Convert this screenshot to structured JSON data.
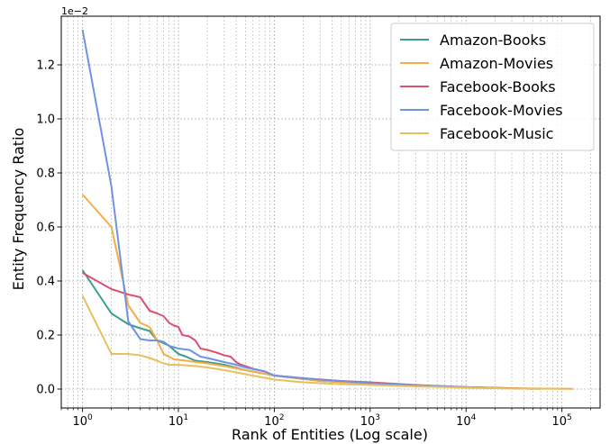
{
  "chart_data": {
    "type": "line",
    "xlabel": "Rank of Entities (Log scale)",
    "ylabel": "Entity Frequency Ratio",
    "y_offset_label": "1e−2",
    "x_scale": "log",
    "xlim": [
      0.6,
      250000
    ],
    "ylim": [
      -0.07,
      1.38
    ],
    "y_ticks": [
      {
        "value": 0.0,
        "label": "0.0"
      },
      {
        "value": 0.2,
        "label": "0.2"
      },
      {
        "value": 0.4,
        "label": "0.4"
      },
      {
        "value": 0.6,
        "label": "0.6"
      },
      {
        "value": 0.8,
        "label": "0.8"
      },
      {
        "value": 1.0,
        "label": "1.0"
      },
      {
        "value": 1.2,
        "label": "1.2"
      }
    ],
    "x_ticks": [
      {
        "value": 1,
        "base": "10",
        "exp": "0"
      },
      {
        "value": 10,
        "base": "10",
        "exp": "1"
      },
      {
        "value": 100,
        "base": "10",
        "exp": "2"
      },
      {
        "value": 1000,
        "base": "10",
        "exp": "3"
      },
      {
        "value": 10000,
        "base": "10",
        "exp": "4"
      },
      {
        "value": 100000,
        "base": "10",
        "exp": "5"
      }
    ],
    "grid": true,
    "legend_position": "top-right",
    "series": [
      {
        "name": "Amazon-Books",
        "color": "#3a9e8c",
        "points": [
          [
            1,
            0.44
          ],
          [
            2,
            0.28
          ],
          [
            3,
            0.24
          ],
          [
            4,
            0.225
          ],
          [
            5,
            0.215
          ],
          [
            6,
            0.18
          ],
          [
            7,
            0.17
          ],
          [
            8,
            0.16
          ],
          [
            10,
            0.13
          ],
          [
            12,
            0.12
          ],
          [
            15,
            0.105
          ],
          [
            20,
            0.1
          ],
          [
            30,
            0.09
          ],
          [
            50,
            0.07
          ],
          [
            100,
            0.05
          ],
          [
            300,
            0.03
          ],
          [
            1000,
            0.02
          ],
          [
            3000,
            0.013
          ],
          [
            10000,
            0.007
          ],
          [
            30000,
            0.003
          ],
          [
            60000,
            0.001
          ]
        ]
      },
      {
        "name": "Amazon-Movies",
        "color": "#f6ac48",
        "points": [
          [
            1,
            0.72
          ],
          [
            2,
            0.6
          ],
          [
            3,
            0.31
          ],
          [
            4,
            0.245
          ],
          [
            5,
            0.23
          ],
          [
            6,
            0.18
          ],
          [
            7,
            0.13
          ],
          [
            9,
            0.11
          ],
          [
            12,
            0.105
          ],
          [
            15,
            0.1
          ],
          [
            20,
            0.095
          ],
          [
            30,
            0.085
          ],
          [
            50,
            0.07
          ],
          [
            100,
            0.05
          ],
          [
            300,
            0.03
          ],
          [
            1000,
            0.02
          ],
          [
            3000,
            0.012
          ],
          [
            10000,
            0.006
          ],
          [
            30000,
            0.003
          ],
          [
            130000,
            0.001
          ]
        ]
      },
      {
        "name": "Facebook-Books",
        "color": "#dc5170",
        "points": [
          [
            1,
            0.43
          ],
          [
            2,
            0.37
          ],
          [
            3,
            0.35
          ],
          [
            4,
            0.34
          ],
          [
            5,
            0.29
          ],
          [
            6,
            0.28
          ],
          [
            7,
            0.27
          ],
          [
            8,
            0.245
          ],
          [
            9,
            0.235
          ],
          [
            10,
            0.23
          ],
          [
            11,
            0.2
          ],
          [
            13,
            0.195
          ],
          [
            15,
            0.18
          ],
          [
            17,
            0.15
          ],
          [
            20,
            0.145
          ],
          [
            25,
            0.135
          ],
          [
            30,
            0.125
          ],
          [
            35,
            0.12
          ],
          [
            40,
            0.1
          ],
          [
            45,
            0.09
          ],
          [
            50,
            0.085
          ],
          [
            60,
            0.075
          ],
          [
            80,
            0.065
          ],
          [
            100,
            0.05
          ],
          [
            200,
            0.04
          ],
          [
            500,
            0.03
          ],
          [
            1000,
            0.025
          ],
          [
            3000,
            0.015
          ],
          [
            10000,
            0.007
          ],
          [
            30000,
            0.003
          ],
          [
            50000,
            0.001
          ]
        ]
      },
      {
        "name": "Facebook-Movies",
        "color": "#6f93e3",
        "points": [
          [
            1,
            1.33
          ],
          [
            2,
            0.75
          ],
          [
            3,
            0.25
          ],
          [
            4,
            0.185
          ],
          [
            5,
            0.18
          ],
          [
            6,
            0.18
          ],
          [
            7,
            0.175
          ],
          [
            8,
            0.16
          ],
          [
            10,
            0.15
          ],
          [
            13,
            0.145
          ],
          [
            17,
            0.12
          ],
          [
            20,
            0.115
          ],
          [
            30,
            0.1
          ],
          [
            40,
            0.09
          ],
          [
            50,
            0.08
          ],
          [
            80,
            0.065
          ],
          [
            100,
            0.05
          ],
          [
            300,
            0.035
          ],
          [
            1000,
            0.022
          ],
          [
            3000,
            0.014
          ],
          [
            10000,
            0.007
          ],
          [
            20000,
            0.003
          ]
        ]
      },
      {
        "name": "Facebook-Music",
        "color": "#e8c05c",
        "points": [
          [
            1,
            0.345
          ],
          [
            2,
            0.13
          ],
          [
            3,
            0.13
          ],
          [
            4,
            0.125
          ],
          [
            5,
            0.115
          ],
          [
            6,
            0.105
          ],
          [
            7,
            0.095
          ],
          [
            8,
            0.09
          ],
          [
            10,
            0.09
          ],
          [
            15,
            0.085
          ],
          [
            20,
            0.08
          ],
          [
            30,
            0.07
          ],
          [
            50,
            0.055
          ],
          [
            100,
            0.035
          ],
          [
            200,
            0.025
          ],
          [
            500,
            0.018
          ],
          [
            1000,
            0.015
          ],
          [
            3000,
            0.01
          ],
          [
            10000,
            0.005
          ],
          [
            30000,
            0.002
          ],
          [
            100000,
            0.001
          ]
        ]
      }
    ]
  }
}
